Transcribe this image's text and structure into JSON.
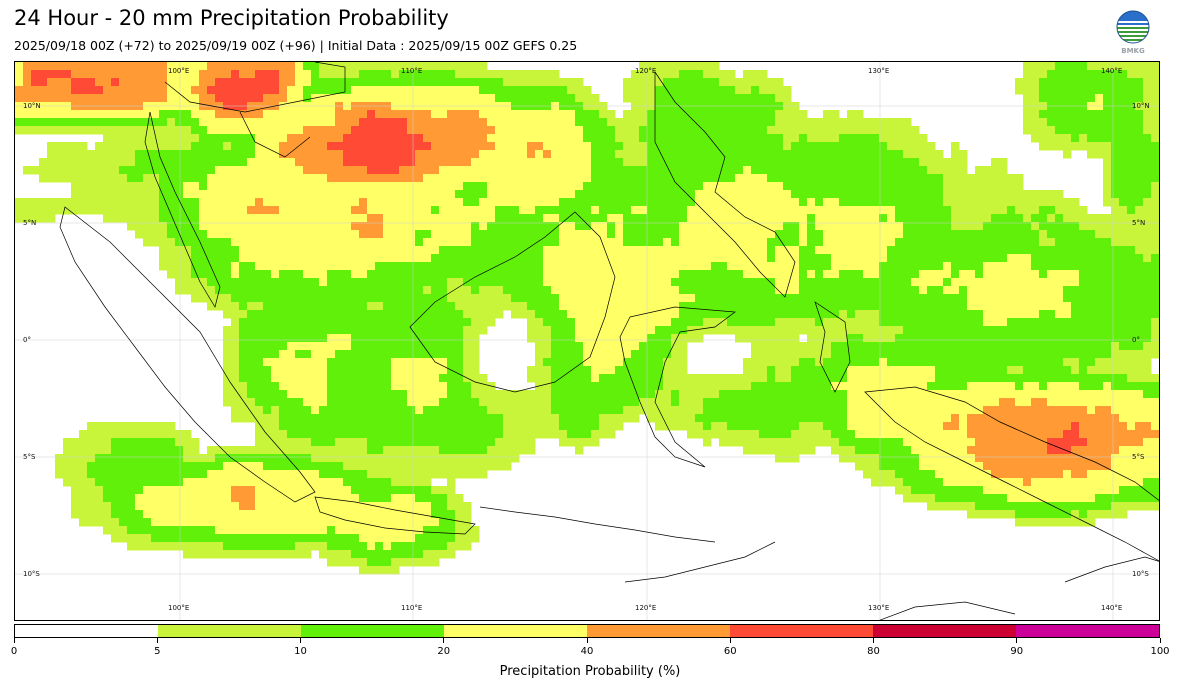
{
  "title": "24 Hour - 20 mm Precipitation Probability",
  "subtitle": "2025/09/18 00Z (+72) to 2025/09/19 00Z (+96) | Initial Data : 2025/09/15 00Z GEFS 0.25",
  "logo": {
    "icon": "bmkg-logo-icon",
    "text": "BMKG"
  },
  "map": {
    "longitude_labels": [
      "100°E",
      "110°E",
      "120°E",
      "130°E",
      "140°E"
    ],
    "latitude_labels": [
      "10°N",
      "5°N",
      "0°",
      "5°S",
      "10°S"
    ],
    "longitude_range": [
      93,
      142
    ],
    "latitude_range": [
      -12,
      12
    ]
  },
  "colorbar": {
    "label": "Precipitation Probability (%)",
    "bounds": [
      "0",
      "5",
      "10",
      "20",
      "40",
      "60",
      "80",
      "90",
      "100"
    ],
    "colors": [
      "#ffffff",
      "#c8f53a",
      "#60f00a",
      "#ffff66",
      "#ff9a35",
      "#ff4a35",
      "#cc0033",
      "#cc0099"
    ]
  }
}
